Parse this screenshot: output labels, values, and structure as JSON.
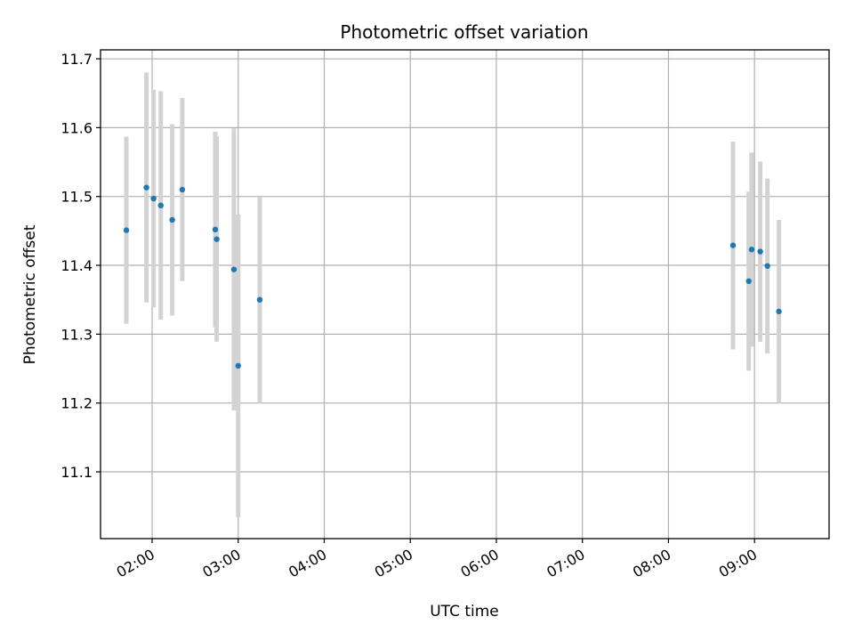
{
  "chart_data": {
    "type": "scatter",
    "title": "Photometric offset variation",
    "xlabel": "UTC time",
    "ylabel": "Photometric offset",
    "x_axis": {
      "kind": "time",
      "range": [
        "01:24",
        "09:52"
      ],
      "ticks": [
        "02:00",
        "03:00",
        "04:00",
        "05:00",
        "06:00",
        "07:00",
        "08:00",
        "09:00"
      ]
    },
    "y_axis": {
      "range": [
        11.003,
        11.713
      ],
      "ticks": [
        "11.1",
        "11.2",
        "11.3",
        "11.4",
        "11.5",
        "11.6",
        "11.7"
      ]
    },
    "grid": true,
    "legend": "none",
    "colors": {
      "point": "#1f77b4",
      "errorbar": "#d3d3d3"
    },
    "series": [
      {
        "points": [
          {
            "x": "01:42",
            "y": 11.451,
            "yerr": 0.136
          },
          {
            "x": "01:56",
            "y": 11.513,
            "yerr": 0.167
          },
          {
            "x": "02:01",
            "y": 11.497,
            "yerr": 0.158
          },
          {
            "x": "02:06",
            "y": 11.487,
            "yerr": 0.166
          },
          {
            "x": "02:14",
            "y": 11.466,
            "yerr": 0.139
          },
          {
            "x": "02:21",
            "y": 11.51,
            "yerr": 0.133
          },
          {
            "x": "02:44",
            "y": 11.452,
            "yerr": 0.142
          },
          {
            "x": "02:45",
            "y": 11.438,
            "yerr": 0.149
          },
          {
            "x": "02:57",
            "y": 11.394,
            "yerr": 0.205
          },
          {
            "x": "03:00",
            "y": 11.254,
            "yerr": 0.22
          },
          {
            "x": "03:15",
            "y": 11.35,
            "yerr": 0.15
          },
          {
            "x": "08:45",
            "y": 11.429,
            "yerr": 0.151
          },
          {
            "x": "08:56",
            "y": 11.377,
            "yerr": 0.13
          },
          {
            "x": "08:58",
            "y": 11.423,
            "yerr": 0.141
          },
          {
            "x": "09:04",
            "y": 11.42,
            "yerr": 0.131
          },
          {
            "x": "09:09",
            "y": 11.399,
            "yerr": 0.127
          },
          {
            "x": "09:17",
            "y": 11.333,
            "yerr": 0.133
          }
        ]
      }
    ]
  }
}
